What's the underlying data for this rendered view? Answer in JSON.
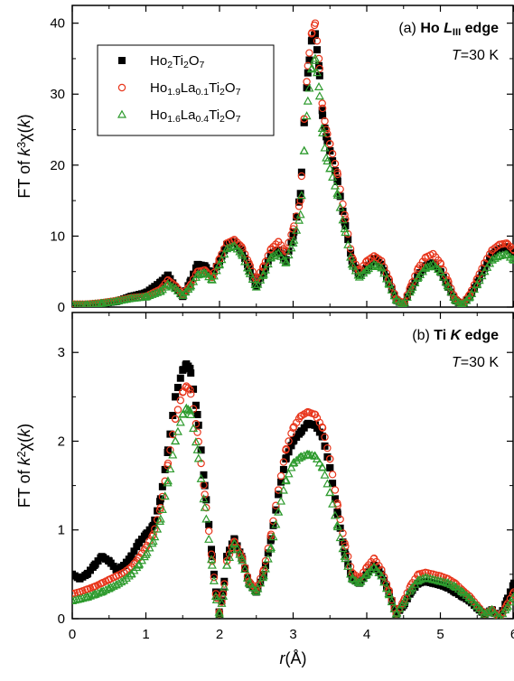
{
  "chart_data": [
    {
      "type": "scatter",
      "panel_label": "(a)",
      "annotation_title": [
        "Ho ",
        "L",
        "III",
        " edge"
      ],
      "annotation_temp": [
        "T",
        "=30 K"
      ],
      "xlabel": [
        "r",
        "(Å)"
      ],
      "ylabel": [
        "FT of ",
        "k",
        "3",
        "χ(",
        "k",
        ")"
      ],
      "xlim": [
        0,
        6
      ],
      "ylim": [
        0,
        42.5
      ],
      "xticks": [
        0,
        1,
        2,
        3,
        4,
        5,
        6
      ],
      "yticks": [
        0,
        10,
        20,
        30,
        40
      ],
      "grid": false,
      "legend_position": "top-left",
      "series": [
        {
          "name_parts": [
            [
              "Ho",
              ""
            ],
            [
              "2",
              "sub"
            ],
            [
              "Ti",
              ""
            ],
            [
              "2",
              "sub"
            ],
            [
              "O",
              ""
            ],
            [
              "7",
              "sub"
            ]
          ],
          "marker": "filled-square",
          "color": "#000000",
          "x": [
            0.0,
            0.2,
            0.4,
            0.6,
            0.8,
            1.0,
            1.2,
            1.3,
            1.4,
            1.5,
            1.6,
            1.7,
            1.8,
            1.9,
            2.0,
            2.1,
            2.2,
            2.3,
            2.4,
            2.5,
            2.6,
            2.7,
            2.8,
            2.9,
            3.0,
            3.1,
            3.15,
            3.2,
            3.25,
            3.3,
            3.35,
            3.4,
            3.45,
            3.5,
            3.6,
            3.7,
            3.8,
            3.9,
            4.0,
            4.1,
            4.2,
            4.3,
            4.4,
            4.5,
            4.6,
            4.7,
            4.8,
            4.9,
            5.0,
            5.1,
            5.2,
            5.3,
            5.4,
            5.5,
            5.6,
            5.7,
            5.8,
            5.9,
            6.0
          ],
          "y": [
            0.3,
            0.3,
            0.5,
            0.8,
            1.5,
            2.0,
            3.5,
            4.5,
            2.8,
            1.5,
            3.5,
            6.0,
            5.8,
            4.5,
            6.5,
            8.8,
            9.2,
            8.0,
            5.5,
            3.0,
            5.0,
            7.5,
            8.0,
            6.5,
            10.0,
            16.0,
            26.0,
            33.0,
            37.5,
            38.5,
            34.0,
            27.0,
            24.0,
            22.0,
            18.0,
            12.0,
            6.5,
            4.5,
            5.5,
            6.8,
            6.0,
            3.5,
            1.0,
            0.3,
            2.5,
            4.5,
            5.8,
            6.2,
            5.0,
            3.0,
            1.0,
            0.3,
            1.5,
            3.5,
            5.5,
            7.5,
            8.2,
            8.5,
            7.5
          ]
        },
        {
          "name_parts": [
            [
              "Ho",
              ""
            ],
            [
              "1.9",
              "sub"
            ],
            [
              "La",
              ""
            ],
            [
              "0.1",
              "sub"
            ],
            [
              "Ti",
              ""
            ],
            [
              "2",
              "sub"
            ],
            [
              "O",
              ""
            ],
            [
              "7",
              "sub"
            ]
          ],
          "marker": "open-circle",
          "color": "#e8361c",
          "x": [
            0.0,
            0.2,
            0.4,
            0.6,
            0.8,
            1.0,
            1.2,
            1.3,
            1.4,
            1.5,
            1.6,
            1.7,
            1.8,
            1.9,
            2.0,
            2.1,
            2.2,
            2.3,
            2.4,
            2.5,
            2.6,
            2.7,
            2.8,
            2.9,
            3.0,
            3.1,
            3.15,
            3.2,
            3.25,
            3.3,
            3.35,
            3.4,
            3.45,
            3.5,
            3.6,
            3.7,
            3.8,
            3.9,
            4.0,
            4.1,
            4.2,
            4.3,
            4.4,
            4.5,
            4.6,
            4.7,
            4.8,
            4.9,
            5.0,
            5.1,
            5.2,
            5.3,
            5.4,
            5.5,
            5.6,
            5.7,
            5.8,
            5.9,
            6.0
          ],
          "y": [
            0.4,
            0.4,
            0.6,
            0.9,
            1.3,
            1.5,
            2.5,
            3.8,
            3.0,
            1.8,
            3.0,
            5.0,
            5.2,
            4.2,
            6.8,
            9.0,
            9.5,
            8.5,
            6.2,
            3.8,
            5.8,
            8.2,
            9.2,
            7.8,
            11.0,
            15.0,
            26.5,
            34.0,
            38.5,
            40.0,
            35.0,
            28.0,
            25.0,
            23.0,
            19.0,
            13.0,
            7.0,
            5.0,
            6.5,
            7.2,
            6.5,
            4.0,
            1.2,
            0.4,
            3.0,
            5.5,
            7.0,
            7.5,
            6.2,
            3.8,
            1.2,
            0.4,
            1.8,
            4.0,
            6.2,
            8.0,
            8.8,
            9.0,
            8.0
          ]
        },
        {
          "name_parts": [
            [
              "Ho",
              ""
            ],
            [
              "1.6",
              "sub"
            ],
            [
              "La",
              ""
            ],
            [
              "0.4",
              "sub"
            ],
            [
              "Ti",
              ""
            ],
            [
              "2",
              "sub"
            ],
            [
              "O",
              ""
            ],
            [
              "7",
              "sub"
            ]
          ],
          "marker": "open-triangle",
          "color": "#2e9b2e",
          "x": [
            0.0,
            0.2,
            0.4,
            0.6,
            0.8,
            1.0,
            1.2,
            1.3,
            1.4,
            1.5,
            1.6,
            1.7,
            1.8,
            1.9,
            2.0,
            2.1,
            2.2,
            2.3,
            2.4,
            2.5,
            2.6,
            2.7,
            2.8,
            2.9,
            3.0,
            3.1,
            3.15,
            3.2,
            3.25,
            3.3,
            3.35,
            3.4,
            3.45,
            3.5,
            3.6,
            3.7,
            3.8,
            3.9,
            4.0,
            4.1,
            4.2,
            4.3,
            4.4,
            4.5,
            4.6,
            4.7,
            4.8,
            4.9,
            5.0,
            5.1,
            5.2,
            5.3,
            5.4,
            5.5,
            5.6,
            5.7,
            5.8,
            5.9,
            6.0
          ],
          "y": [
            0.3,
            0.3,
            0.5,
            0.8,
            1.2,
            1.4,
            2.2,
            3.2,
            2.6,
            1.6,
            2.8,
            4.5,
            4.8,
            3.8,
            6.0,
            8.2,
            8.6,
            7.5,
            5.0,
            2.8,
            4.6,
            7.0,
            7.6,
            6.2,
            9.0,
            13.0,
            22.0,
            29.0,
            33.5,
            35.0,
            31.0,
            24.5,
            21.0,
            19.5,
            16.0,
            11.0,
            6.0,
            4.2,
            5.2,
            6.0,
            5.5,
            3.3,
            1.0,
            0.3,
            2.4,
            4.2,
            5.5,
            6.0,
            5.0,
            3.0,
            1.0,
            0.3,
            1.4,
            3.2,
            5.0,
            6.6,
            7.2,
            7.4,
            6.6
          ]
        }
      ]
    },
    {
      "type": "scatter",
      "panel_label": "(b)",
      "annotation_title": [
        "Ti ",
        "K",
        " edge"
      ],
      "annotation_temp": [
        "T",
        "=30 K"
      ],
      "xlabel": [
        "r",
        "(Å)"
      ],
      "ylabel": [
        "FT of ",
        "k",
        "2",
        "χ(",
        "k",
        ")"
      ],
      "xlim": [
        0,
        6
      ],
      "ylim": [
        0,
        3.45
      ],
      "xticks": [
        0,
        1,
        2,
        3,
        4,
        5,
        6
      ],
      "yticks": [
        0,
        1,
        2,
        3
      ],
      "grid": false,
      "series": [
        {
          "name": "Ho2Ti2O7",
          "marker": "filled-square",
          "color": "#000000",
          "x": [
            0.0,
            0.1,
            0.2,
            0.3,
            0.4,
            0.5,
            0.6,
            0.7,
            0.8,
            0.9,
            1.0,
            1.1,
            1.2,
            1.3,
            1.4,
            1.5,
            1.55,
            1.6,
            1.7,
            1.8,
            1.9,
            1.95,
            2.0,
            2.05,
            2.1,
            2.2,
            2.3,
            2.4,
            2.5,
            2.6,
            2.7,
            2.8,
            2.9,
            3.0,
            3.1,
            3.2,
            3.3,
            3.4,
            3.5,
            3.6,
            3.7,
            3.8,
            3.9,
            4.0,
            4.1,
            4.2,
            4.3,
            4.4,
            4.5,
            4.6,
            4.7,
            4.8,
            4.9,
            5.0,
            5.1,
            5.2,
            5.3,
            5.4,
            5.5,
            5.6,
            5.7,
            5.8,
            5.9,
            6.0
          ],
          "y": [
            0.5,
            0.45,
            0.5,
            0.6,
            0.7,
            0.65,
            0.55,
            0.6,
            0.7,
            0.85,
            0.95,
            1.05,
            1.35,
            1.9,
            2.5,
            2.8,
            2.87,
            2.82,
            2.3,
            1.5,
            0.7,
            0.3,
            0.05,
            0.3,
            0.7,
            0.9,
            0.7,
            0.4,
            0.3,
            0.5,
            0.9,
            1.4,
            1.8,
            2.0,
            2.1,
            2.2,
            2.18,
            2.05,
            1.7,
            1.2,
            0.75,
            0.45,
            0.4,
            0.5,
            0.6,
            0.5,
            0.3,
            0.05,
            0.15,
            0.3,
            0.4,
            0.42,
            0.4,
            0.38,
            0.35,
            0.3,
            0.25,
            0.2,
            0.12,
            0.05,
            0.1,
            0.0,
            0.2,
            0.4
          ]
        },
        {
          "name": "Ho1.9La0.1Ti2O7",
          "marker": "open-circle",
          "color": "#e8361c",
          "x": [
            0.0,
            0.1,
            0.2,
            0.3,
            0.4,
            0.5,
            0.6,
            0.7,
            0.8,
            0.9,
            1.0,
            1.1,
            1.2,
            1.3,
            1.4,
            1.5,
            1.55,
            1.6,
            1.7,
            1.8,
            1.9,
            1.95,
            2.0,
            2.05,
            2.1,
            2.2,
            2.3,
            2.4,
            2.5,
            2.6,
            2.7,
            2.8,
            2.9,
            3.0,
            3.1,
            3.2,
            3.3,
            3.4,
            3.5,
            3.6,
            3.7,
            3.8,
            3.9,
            4.0,
            4.1,
            4.2,
            4.3,
            4.4,
            4.5,
            4.6,
            4.7,
            4.8,
            4.9,
            5.0,
            5.1,
            5.2,
            5.3,
            5.4,
            5.5,
            5.6,
            5.7,
            5.8,
            5.9,
            6.0
          ],
          "y": [
            0.28,
            0.3,
            0.33,
            0.36,
            0.4,
            0.44,
            0.48,
            0.52,
            0.58,
            0.68,
            0.8,
            0.95,
            1.25,
            1.75,
            2.25,
            2.55,
            2.62,
            2.58,
            2.1,
            1.4,
            0.65,
            0.28,
            0.05,
            0.28,
            0.65,
            0.87,
            0.7,
            0.42,
            0.33,
            0.55,
            0.95,
            1.45,
            1.9,
            2.15,
            2.28,
            2.33,
            2.3,
            2.15,
            1.8,
            1.3,
            0.85,
            0.52,
            0.45,
            0.58,
            0.68,
            0.55,
            0.32,
            0.05,
            0.2,
            0.38,
            0.5,
            0.52,
            0.5,
            0.48,
            0.45,
            0.4,
            0.32,
            0.25,
            0.15,
            0.05,
            0.1,
            0.0,
            0.15,
            0.3
          ]
        },
        {
          "name": "Ho1.6La0.4Ti2O7",
          "marker": "open-triangle",
          "color": "#2e9b2e",
          "x": [
            0.0,
            0.1,
            0.2,
            0.3,
            0.4,
            0.5,
            0.6,
            0.7,
            0.8,
            0.9,
            1.0,
            1.1,
            1.2,
            1.3,
            1.4,
            1.5,
            1.55,
            1.6,
            1.7,
            1.8,
            1.9,
            1.95,
            2.0,
            2.05,
            2.1,
            2.2,
            2.3,
            2.4,
            2.5,
            2.6,
            2.7,
            2.8,
            2.9,
            3.0,
            3.1,
            3.2,
            3.3,
            3.4,
            3.5,
            3.6,
            3.7,
            3.8,
            3.9,
            4.0,
            4.1,
            4.2,
            4.3,
            4.4,
            4.5,
            4.6,
            4.7,
            4.8,
            4.9,
            5.0,
            5.1,
            5.2,
            5.3,
            5.4,
            5.5,
            5.6,
            5.7,
            5.8,
            5.9,
            6.0
          ],
          "y": [
            0.2,
            0.22,
            0.24,
            0.27,
            0.3,
            0.34,
            0.38,
            0.43,
            0.5,
            0.6,
            0.72,
            0.87,
            1.12,
            1.55,
            2.0,
            2.3,
            2.37,
            2.34,
            1.9,
            1.25,
            0.6,
            0.25,
            0.05,
            0.25,
            0.6,
            0.85,
            0.68,
            0.4,
            0.3,
            0.48,
            0.8,
            1.2,
            1.55,
            1.75,
            1.82,
            1.85,
            1.83,
            1.7,
            1.42,
            1.05,
            0.7,
            0.45,
            0.4,
            0.5,
            0.58,
            0.48,
            0.28,
            0.05,
            0.18,
            0.33,
            0.43,
            0.46,
            0.44,
            0.42,
            0.4,
            0.36,
            0.3,
            0.23,
            0.14,
            0.05,
            0.1,
            0.0,
            0.12,
            0.25
          ]
        }
      ]
    }
  ]
}
